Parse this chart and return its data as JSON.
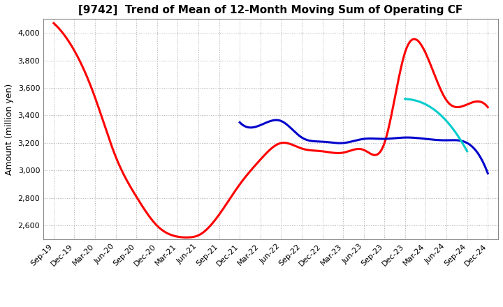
{
  "title": "[9742]  Trend of Mean of 12-Month Moving Sum of Operating CF",
  "ylabel": "Amount (million yen)",
  "ylim": [
    2500,
    4100
  ],
  "yticks": [
    2600,
    2800,
    3000,
    3200,
    3400,
    3600,
    3800,
    4000
  ],
  "background_color": "#ffffff",
  "grid_color": "#999999",
  "series_3y_color": "#ff0000",
  "series_5y_color": "#0000cc",
  "series_7y_color": "#00cccc",
  "series_10y_color": "#008000",
  "x_labels": [
    "Sep-19",
    "Dec-19",
    "Mar-20",
    "Jun-20",
    "Sep-20",
    "Dec-20",
    "Mar-21",
    "Jun-21",
    "Sep-21",
    "Dec-21",
    "Mar-22",
    "Jun-22",
    "Sep-22",
    "Dec-22",
    "Mar-23",
    "Jun-23",
    "Sep-23",
    "Dec-23",
    "Mar-24",
    "Jun-24",
    "Sep-24",
    "Dec-24"
  ],
  "series_3y": {
    "x": [
      0,
      1,
      2,
      3,
      4,
      5,
      6,
      6.5,
      7,
      8,
      9,
      10,
      11,
      12,
      13,
      14,
      15,
      16,
      17,
      18,
      19,
      20,
      21
    ],
    "y": [
      4070,
      3870,
      3530,
      3100,
      2810,
      2600,
      2520,
      2515,
      2530,
      2680,
      2900,
      3080,
      3200,
      3160,
      3140,
      3130,
      3150,
      3200,
      3860,
      3850,
      3510,
      3480,
      3460
    ]
  },
  "series_5y": {
    "x": [
      9,
      10,
      11,
      12,
      13,
      14,
      15,
      16,
      17,
      18,
      19,
      20,
      21
    ],
    "y": [
      3350,
      3330,
      3360,
      3240,
      3210,
      3200,
      3230,
      3230,
      3240,
      3230,
      3220,
      3200,
      2980
    ]
  },
  "series_7y": {
    "x": [
      17,
      18,
      19,
      20
    ],
    "y": [
      3520,
      3480,
      3360,
      3140
    ]
  },
  "linewidth": 2.2
}
